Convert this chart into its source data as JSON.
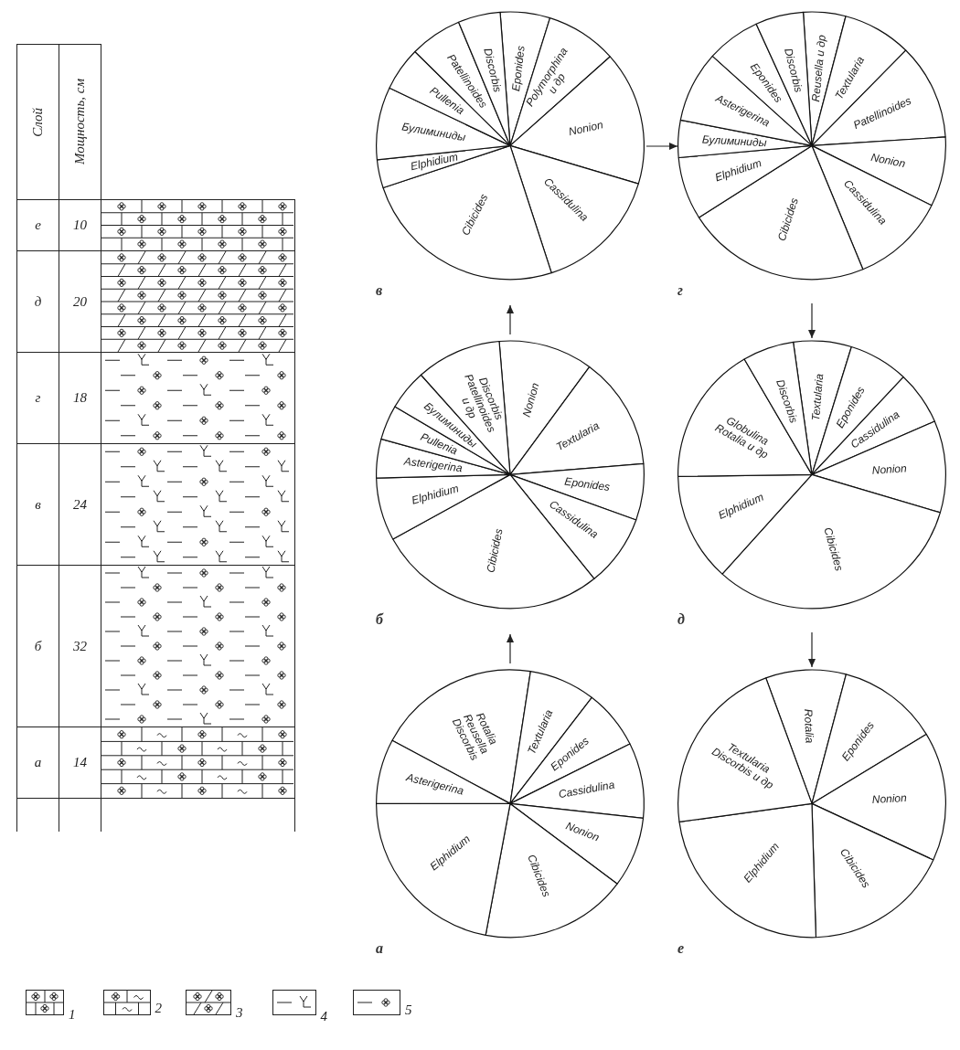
{
  "chart_data": [
    {
      "type": "other",
      "xlabel": "Слой",
      "ylabel": "Мощность, см",
      "categories": [
        "е",
        "д",
        "г",
        "в",
        "б",
        "а"
      ],
      "values": [
        10,
        20,
        18,
        24,
        32,
        14
      ],
      "value_labels": [
        "10",
        "20",
        "18",
        "24",
        "32",
        "14"
      ]
    },
    {
      "type": "pie",
      "title": "в",
      "categories": [
        "Eponides",
        "Polymorphina и др",
        "Nonion",
        "Cassidulina",
        "Cibicides",
        "Elphidium",
        "Булиминиды",
        "Pullenia",
        "Patellinoides",
        "Discorbis"
      ],
      "values": [
        6.0,
        8.6,
        16.2,
        15.4,
        24.9,
        3.4,
        8.8,
        5.3,
        6.3,
        5.1
      ],
      "colors": [
        "#ffffff",
        "#ffffff",
        "#ffffff",
        "#ffffff",
        "#ffffff",
        "#ffffff",
        "#ffffff",
        "#ffffff",
        "#ffffff",
        "#ffffff"
      ]
    },
    {
      "type": "pie",
      "title": "г",
      "categories": [
        "Reusella и др",
        "Textularia",
        "Patellinoides",
        "Nonion",
        "Cassidulina",
        "Cibicides",
        "Elphidium",
        "Булиминиды",
        "Asterigerina",
        "Eponides",
        "Discorbis"
      ],
      "values": [
        5.1,
        8.3,
        11.6,
        8.4,
        11.4,
        22.2,
        7.6,
        4.5,
        8.6,
        6.5,
        5.8
      ],
      "colors": [
        "#ffffff",
        "#ffffff",
        "#ffffff",
        "#ffffff",
        "#ffffff",
        "#ffffff",
        "#ffffff",
        "#ffffff",
        "#ffffff",
        "#ffffff",
        "#ffffff"
      ]
    },
    {
      "type": "pie",
      "title": "б",
      "categories": [
        "Nonion",
        "Textularia",
        "Eponides",
        "Cassidulina",
        "Cibicides",
        "Elphidium",
        "Asterigerina",
        "Pullenia",
        "Булиминиды",
        "Discorbis Patellinoides и др"
      ],
      "values": [
        11.4,
        13.6,
        6.8,
        8.7,
        27.8,
        7.6,
        4.7,
        4.2,
        4.9,
        10.3
      ],
      "colors": [
        "#ffffff",
        "#ffffff",
        "#ffffff",
        "#ffffff",
        "#ffffff",
        "#ffffff",
        "#ffffff",
        "#ffffff",
        "#ffffff",
        "#ffffff"
      ]
    },
    {
      "type": "pie",
      "title": "д",
      "categories": [
        "Textularia",
        "Eponides",
        "Cassidulina",
        "Nonion",
        "Cibicides",
        "Elphidium",
        "Globulina Rotalia и др",
        "Discorbis"
      ],
      "values": [
        7.0,
        7.2,
        6.5,
        11.1,
        32.1,
        13.1,
        16.8,
        6.2
      ],
      "colors": [
        "#ffffff",
        "#ffffff",
        "#ffffff",
        "#ffffff",
        "#ffffff",
        "#ffffff",
        "#ffffff",
        "#ffffff"
      ]
    },
    {
      "type": "pie",
      "title": "а",
      "categories": [
        "Rotalia Reusella Discorbis",
        "Textularia",
        "Eponides",
        "Cassidulina",
        "Nonion",
        "Cibicides",
        "Elphidium",
        "Asterigerina"
      ],
      "values": [
        19.6,
        8.0,
        7.2,
        9.1,
        8.5,
        17.7,
        22.1,
        7.8
      ],
      "colors": [
        "#ffffff",
        "#ffffff",
        "#ffffff",
        "#ffffff",
        "#ffffff",
        "#ffffff",
        "#ffffff",
        "#ffffff"
      ]
    },
    {
      "type": "pie",
      "title": "е",
      "categories": [
        "Rotalia",
        "Eponides",
        "Nonion",
        "Cibicides",
        "Elphidium",
        "Textularia Discorbis и др"
      ],
      "values": [
        9.7,
        12.2,
        15.6,
        17.6,
        23.3,
        21.6
      ],
      "colors": [
        "#ffffff",
        "#ffffff",
        "#ffffff",
        "#ffffff",
        "#ffffff",
        "#ffffff"
      ]
    },
    {
      "type": "other",
      "annotations": [
        "1",
        "2",
        "3",
        "4",
        "5"
      ]
    }
  ]
}
